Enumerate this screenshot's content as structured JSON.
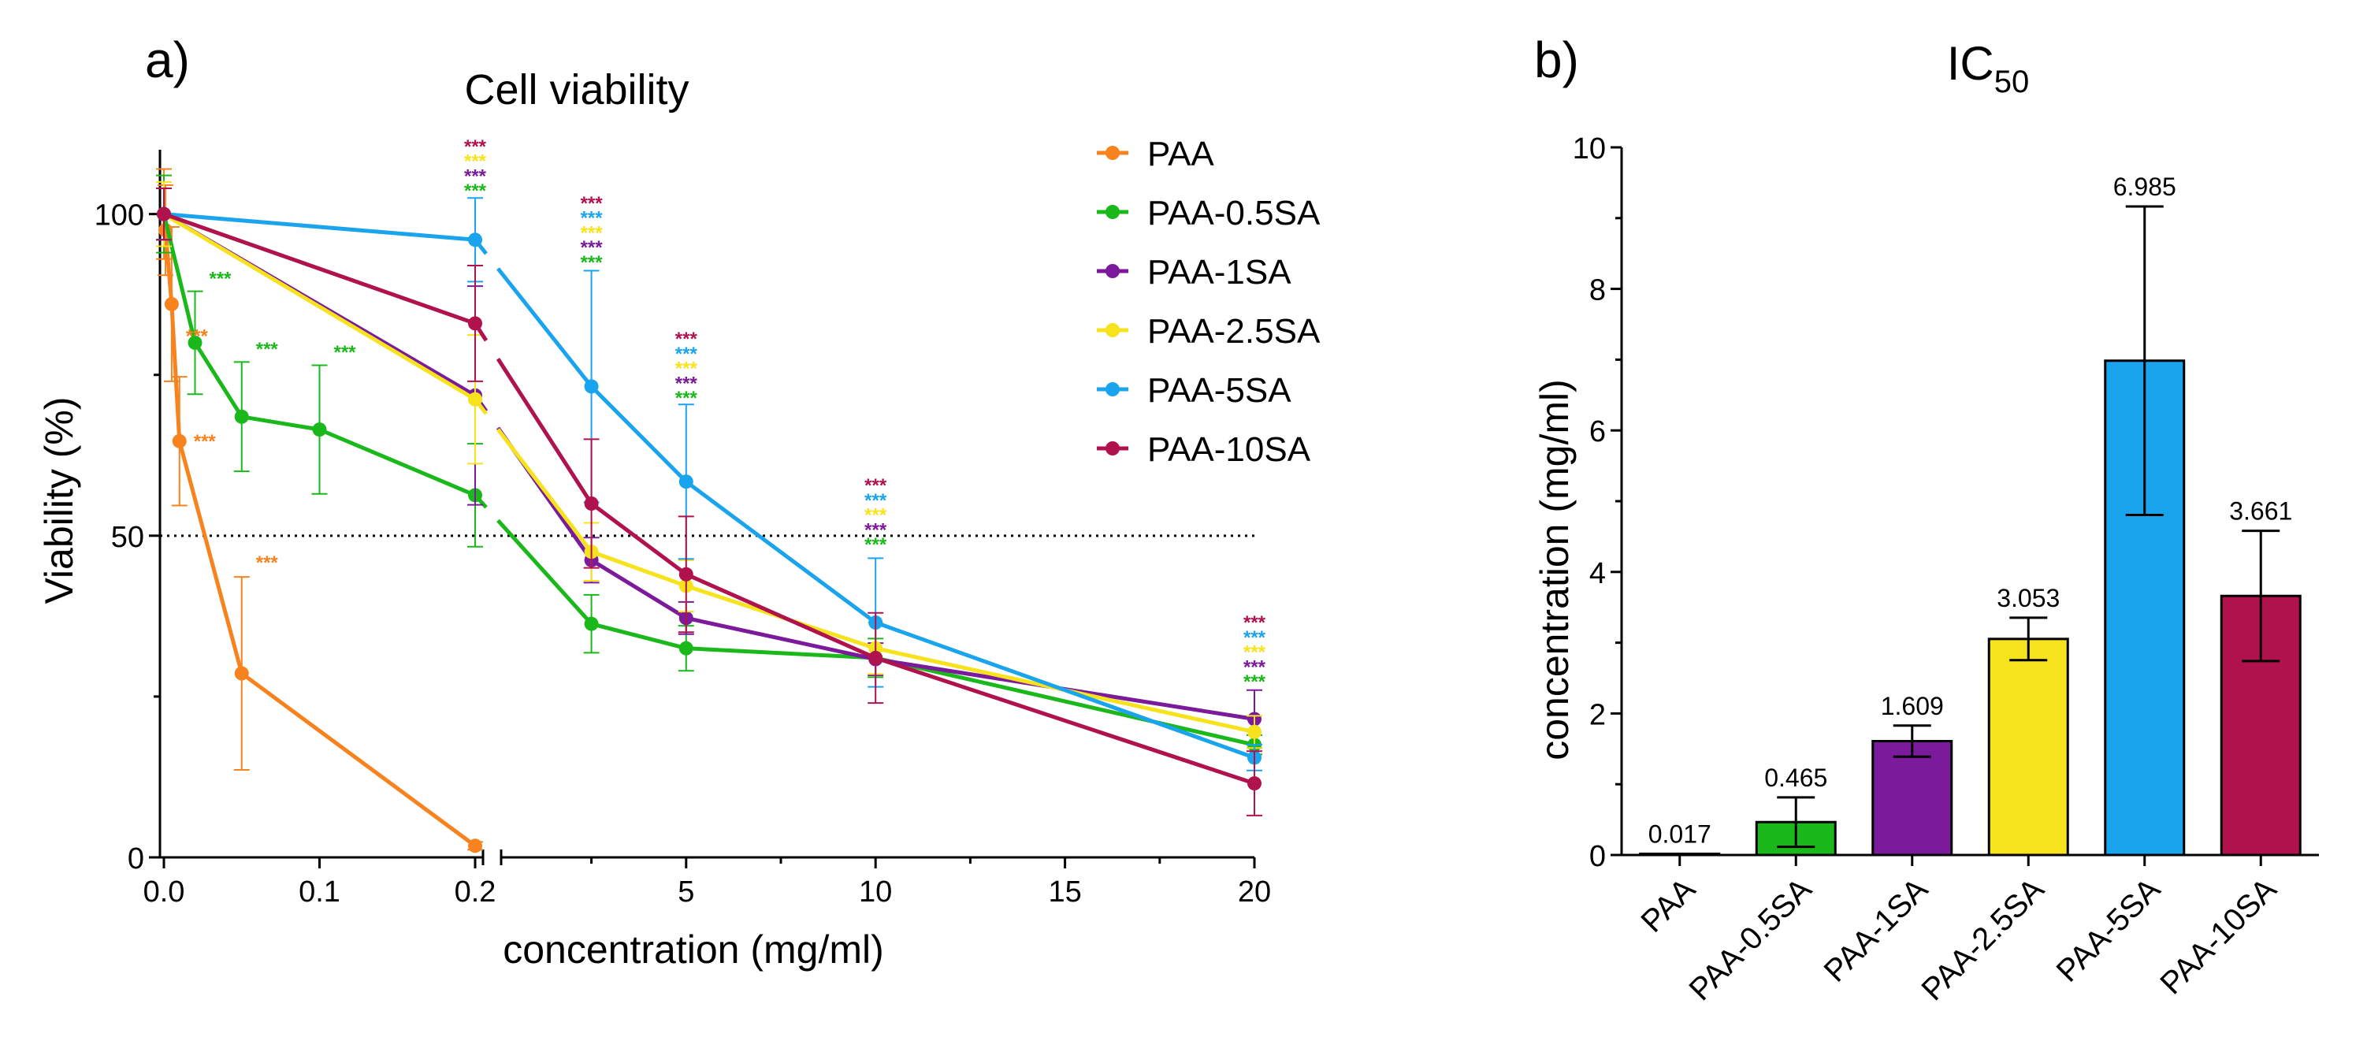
{
  "panel_a": {
    "label": "a)",
    "chart_data": {
      "type": "line",
      "title": "Cell viability",
      "xlabel": "concentration (mg/ml)",
      "ylabel": "Viability (%)",
      "ylim": [
        0,
        110
      ],
      "x_segments": [
        {
          "range": [
            0,
            0.2
          ],
          "ticks": [
            0.0,
            0.1,
            0.2
          ],
          "tick_labels": [
            "0.0",
            "0.1",
            "0.2"
          ]
        },
        {
          "range": [
            0.2,
            20
          ],
          "ticks": [
            5,
            10,
            15,
            20
          ],
          "tick_labels": [
            "5",
            "10",
            "15",
            "20"
          ]
        }
      ],
      "y_ticks": [
        0,
        50,
        100
      ],
      "y_tick_labels": [
        "0",
        "50",
        "100"
      ],
      "reference_line": {
        "y": 50,
        "style": "dotted"
      },
      "legend_position": "top-right",
      "series": [
        {
          "name": "PAA",
          "color": "#F7821E",
          "points": [
            [
              0,
              100,
              7
            ],
            [
              0.001,
              97.5,
              7
            ],
            [
              0.005,
              86,
              12
            ],
            [
              0.01,
              64.7,
              10
            ],
            [
              0.05,
              28.6,
              15
            ],
            [
              0.2,
              1.8,
              0.6
            ]
          ]
        },
        {
          "name": "PAA-0.5SA",
          "color": "#1AB81A",
          "points": [
            [
              0,
              100,
              6
            ],
            [
              0.02,
              80,
              8
            ],
            [
              0.05,
              68.5,
              8.5
            ],
            [
              0.1,
              66.5,
              10
            ],
            [
              0.2,
              56.3,
              8
            ],
            [
              2.5,
              36.3,
              4.5
            ],
            [
              5,
              32.5,
              3.5
            ],
            [
              10,
              31,
              3
            ],
            [
              20,
              17.5,
              1.5
            ]
          ]
        },
        {
          "name": "PAA-1SA",
          "color": "#7B1A9A",
          "points": [
            [
              0,
              100,
              4
            ],
            [
              0.2,
              71.8,
              17
            ],
            [
              2.5,
              46.2,
              3.5
            ],
            [
              5,
              37.2,
              2.5
            ],
            [
              10,
              30.8,
              2.5
            ],
            [
              20,
              21.5,
              4.5
            ]
          ]
        },
        {
          "name": "PAA-2.5SA",
          "color": "#F7E21E",
          "points": [
            [
              0,
              100,
              5
            ],
            [
              0.2,
              71.2,
              10
            ],
            [
              2.5,
              47.5,
              4.5
            ],
            [
              5,
              42.2,
              4
            ],
            [
              10,
              32.5,
              4
            ],
            [
              20,
              19.5,
              2.5
            ]
          ]
        },
        {
          "name": "PAA-5SA",
          "color": "#1BA4EE",
          "points": [
            [
              0,
              100,
              4
            ],
            [
              0.2,
              96,
              6.5
            ],
            [
              2.5,
              73.2,
              18
            ],
            [
              5,
              58.4,
              12
            ],
            [
              10,
              36.5,
              10
            ],
            [
              20,
              15.5,
              2
            ]
          ]
        },
        {
          "name": "PAA-10SA",
          "color": "#B0124E",
          "points": [
            [
              0,
              100,
              4
            ],
            [
              0.2,
              83,
              9
            ],
            [
              2.5,
              55,
              10
            ],
            [
              5,
              44,
              9
            ],
            [
              10,
              31,
              7
            ],
            [
              20,
              11.5,
              5
            ]
          ]
        }
      ],
      "annotations": [
        {
          "text": "***",
          "x": 0.005,
          "y": 81,
          "color": "#F7821E"
        },
        {
          "text": "***",
          "x": 0.01,
          "y": 64.7,
          "color": "#F7821E"
        },
        {
          "text": "***",
          "x": 0.05,
          "y": 45.8,
          "color": "#F7821E"
        },
        {
          "text": "***",
          "x": 0.02,
          "y": 90,
          "color": "#1AB81A"
        },
        {
          "text": "***",
          "x": 0.05,
          "y": 79,
          "color": "#1AB81A"
        },
        {
          "text": "***",
          "x": 0.1,
          "y": 78.5,
          "color": "#1AB81A"
        },
        {
          "text": "***",
          "x": 0.2,
          "y": 103.6,
          "color": "#1AB81A"
        },
        {
          "text": "***",
          "x": 0.2,
          "y": 105.9,
          "color": "#7B1A9A"
        },
        {
          "text": "***",
          "x": 0.2,
          "y": 108.2,
          "color": "#F7E21E"
        },
        {
          "text": "***",
          "x": 0.2,
          "y": 110.5,
          "color": "#B0124E"
        },
        {
          "text": "***",
          "x": 2.5,
          "y": 92.5,
          "color": "#1AB81A"
        },
        {
          "text": "***",
          "x": 2.5,
          "y": 94.8,
          "color": "#7B1A9A"
        },
        {
          "text": "***",
          "x": 2.5,
          "y": 97.1,
          "color": "#F7E21E"
        },
        {
          "text": "***",
          "x": 2.5,
          "y": 99.4,
          "color": "#1BA4EE"
        },
        {
          "text": "***",
          "x": 2.5,
          "y": 101.7,
          "color": "#B0124E"
        },
        {
          "text": "***",
          "x": 5,
          "y": 71.4,
          "color": "#1AB81A"
        },
        {
          "text": "***",
          "x": 5,
          "y": 73.7,
          "color": "#7B1A9A"
        },
        {
          "text": "***",
          "x": 5,
          "y": 76,
          "color": "#F7E21E"
        },
        {
          "text": "***",
          "x": 5,
          "y": 78.3,
          "color": "#1BA4EE"
        },
        {
          "text": "***",
          "x": 5,
          "y": 80.6,
          "color": "#B0124E"
        },
        {
          "text": "***",
          "x": 10,
          "y": 48.6,
          "color": "#1AB81A"
        },
        {
          "text": "***",
          "x": 10,
          "y": 50.9,
          "color": "#7B1A9A"
        },
        {
          "text": "***",
          "x": 10,
          "y": 53.2,
          "color": "#F7E21E"
        },
        {
          "text": "***",
          "x": 10,
          "y": 55.5,
          "color": "#1BA4EE"
        },
        {
          "text": "***",
          "x": 10,
          "y": 57.8,
          "color": "#B0124E"
        },
        {
          "text": "***",
          "x": 20,
          "y": 27.3,
          "color": "#1AB81A"
        },
        {
          "text": "***",
          "x": 20,
          "y": 29.6,
          "color": "#7B1A9A"
        },
        {
          "text": "***",
          "x": 20,
          "y": 31.9,
          "color": "#F7E21E"
        },
        {
          "text": "***",
          "x": 20,
          "y": 34.2,
          "color": "#1BA4EE"
        },
        {
          "text": "***",
          "x": 20,
          "y": 36.5,
          "color": "#B0124E"
        }
      ]
    }
  },
  "panel_b": {
    "label": "b)",
    "chart_data": {
      "type": "bar",
      "title": "IC",
      "title_subscript": "50",
      "xlabel": "",
      "ylabel": "concentration (mg/ml)",
      "ylim": [
        0,
        10
      ],
      "y_ticks": [
        0,
        2,
        4,
        6,
        8,
        10
      ],
      "y_tick_labels": [
        "0",
        "2",
        "4",
        "6",
        "8",
        "10"
      ],
      "categories": [
        "PAA",
        "PAA-0.5SA",
        "PAA-1SA",
        "PAA-2.5SA",
        "PAA-5SA",
        "PAA-10SA"
      ],
      "values": [
        0.017,
        0.465,
        1.609,
        3.053,
        6.985,
        3.661
      ],
      "value_labels": [
        "0.017",
        "0.465",
        "1.609",
        "3.053",
        "6.985",
        "3.661"
      ],
      "errors": [
        0.0,
        0.35,
        0.22,
        0.3,
        2.18,
        0.92
      ],
      "colors": [
        "#F7821E",
        "#1AB81A",
        "#7B1A9A",
        "#F7E21E",
        "#1BA4EE",
        "#B0124E"
      ]
    }
  }
}
